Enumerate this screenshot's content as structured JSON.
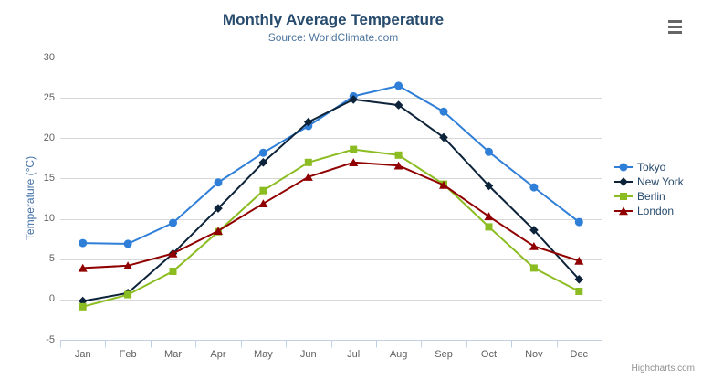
{
  "chart": {
    "title": "Monthly Average Temperature",
    "subtitle": "Source: WorldClimate.com",
    "credit": "Highcharts.com"
  },
  "export_menu": {
    "icon": "hamburger-menu-icon"
  },
  "chart_data": {
    "type": "line",
    "title": "Monthly Average Temperature",
    "subtitle": "Source: WorldClimate.com",
    "xlabel": "",
    "ylabel": "Temperature (°C)",
    "ylim": [
      -5,
      30
    ],
    "yticks": [
      -5,
      0,
      5,
      10,
      15,
      20,
      25,
      30
    ],
    "grid": "horizontal",
    "legend_position": "right",
    "categories": [
      "Jan",
      "Feb",
      "Mar",
      "Apr",
      "May",
      "Jun",
      "Jul",
      "Aug",
      "Sep",
      "Oct",
      "Nov",
      "Dec"
    ],
    "series": [
      {
        "name": "Tokyo",
        "color": "#2f7ed8",
        "marker": "circle",
        "values": [
          7.0,
          6.9,
          9.5,
          14.5,
          18.2,
          21.5,
          25.2,
          26.5,
          23.3,
          18.3,
          13.9,
          9.6
        ]
      },
      {
        "name": "New York",
        "color": "#0d233a",
        "marker": "diamond",
        "values": [
          -0.2,
          0.8,
          5.7,
          11.3,
          17.0,
          22.0,
          24.8,
          24.1,
          20.1,
          14.1,
          8.6,
          2.5
        ]
      },
      {
        "name": "Berlin",
        "color": "#8bbc21",
        "marker": "square",
        "values": [
          -0.9,
          0.6,
          3.5,
          8.4,
          13.5,
          17.0,
          18.6,
          17.9,
          14.3,
          9.0,
          3.9,
          1.0
        ]
      },
      {
        "name": "London",
        "color": "#910000",
        "marker": "triangle",
        "values": [
          3.9,
          4.2,
          5.7,
          8.5,
          11.9,
          15.2,
          17.0,
          16.6,
          14.2,
          10.3,
          6.6,
          4.8
        ]
      }
    ]
  },
  "colors": {
    "title": "#274b6d",
    "subtitle": "#4d759e",
    "axis_title": "#4572a7",
    "axis_labels": "#606060",
    "grid_line": "#d8d8d8",
    "axis_line": "#c0d0e0",
    "legend_text": "#274b6d",
    "credit": "#909090",
    "menu_icon": "#666666"
  }
}
